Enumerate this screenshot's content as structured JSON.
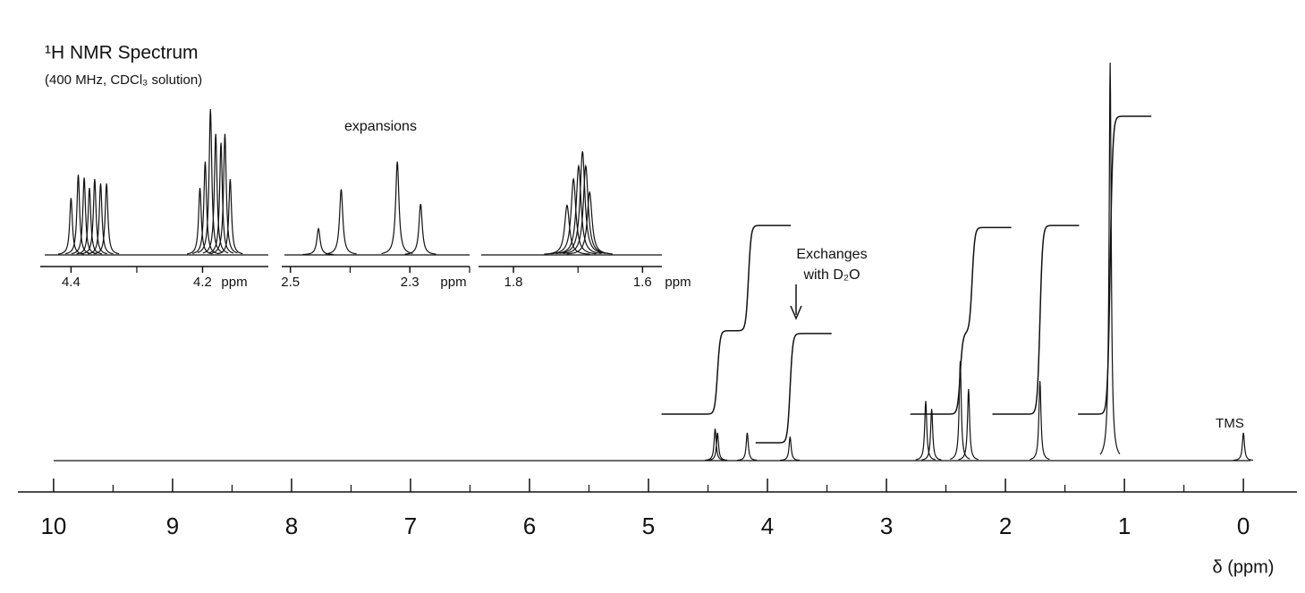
{
  "chart_data": [
    {
      "type": "nmr",
      "title": "¹H NMR Spectrum",
      "subtitle": "(400 MHz, CDCl₃ solution)",
      "xlabel": "δ (ppm)",
      "xlim": [
        10.3,
        -0.45
      ],
      "ylim": [
        0,
        100
      ],
      "xticks": [
        10,
        9,
        8,
        7,
        6,
        5,
        4,
        3,
        2,
        1,
        0
      ],
      "xminorticks": [
        9.5,
        8.5,
        7.5,
        6.5,
        5.5,
        4.5,
        3.5,
        2.5,
        1.5,
        0.5
      ],
      "peaks": {
        "x": [
          4.44,
          4.42,
          4.17,
          3.81,
          2.67,
          2.62,
          2.38,
          2.31,
          1.71,
          1.12,
          0
        ],
        "values": [
          8,
          7,
          7,
          6,
          15,
          13,
          25,
          18,
          20,
          100,
          7
        ]
      },
      "integrals": [
        {
          "xlim": [
            4.89,
            3.8
          ],
          "steps": [
            4.42,
            4.16
          ],
          "rises": [
            0.84,
            1.06
          ]
        },
        {
          "xlim": [
            4.1,
            3.46
          ],
          "steps": [
            3.81
          ],
          "rises": [
            1.1
          ]
        },
        {
          "xlim": [
            2.8,
            1.95
          ],
          "steps": [
            2.38,
            2.28
          ],
          "rises": [
            0.82,
            1.06
          ]
        },
        {
          "xlim": [
            2.11,
            1.38
          ],
          "steps": [
            1.71
          ],
          "rises": [
            1.9
          ]
        },
        {
          "xlim": [
            1.39,
            0.77
          ],
          "steps": [
            1.12
          ],
          "rises": [
            3.0
          ]
        }
      ],
      "annotations": [
        "expansions",
        "Exchanges",
        "with D₂O",
        "TMS"
      ],
      "color": "#111111"
    },
    {
      "type": "nmr",
      "xlabel": "ppm",
      "xlim": [
        4.44,
        4.1
      ],
      "ylim": [
        0,
        100
      ],
      "xticks": [
        4.4,
        4.2
      ],
      "xminorticks": [
        4.3
      ],
      "peaks": {
        "x": [
          4.4,
          4.389,
          4.38,
          4.372,
          4.364,
          4.355,
          4.346,
          4.204,
          4.196,
          4.188,
          4.18,
          4.172,
          4.166,
          4.158
        ],
        "values": [
          39,
          55,
          53,
          46,
          52,
          49,
          49,
          46,
          64,
          100,
          83,
          77,
          83,
          52
        ]
      },
      "color": "#111111"
    },
    {
      "type": "nmr",
      "xlabel": "ppm",
      "xlim": [
        2.51,
        2.2
      ],
      "ylim": [
        0,
        100
      ],
      "xticks": [
        2.5,
        2.3
      ],
      "xminorticks": [
        2.4,
        2.2
      ],
      "peaks": {
        "x": [
          2.453,
          2.415,
          2.321,
          2.282
        ],
        "values": [
          18,
          45,
          64,
          35
        ]
      },
      "color": "#111111"
    },
    {
      "type": "nmr",
      "xlabel": "ppm",
      "xlim": [
        1.85,
        1.57
      ],
      "ylim": [
        0,
        100
      ],
      "xticks": [
        1.8,
        1.6
      ],
      "xminorticks": [
        1.7
      ],
      "peaks": {
        "x": [
          1.717,
          1.707,
          1.699,
          1.693,
          1.688,
          1.682
        ],
        "values": [
          34,
          52,
          61,
          71,
          61,
          43
        ]
      },
      "color": "#111111"
    }
  ]
}
